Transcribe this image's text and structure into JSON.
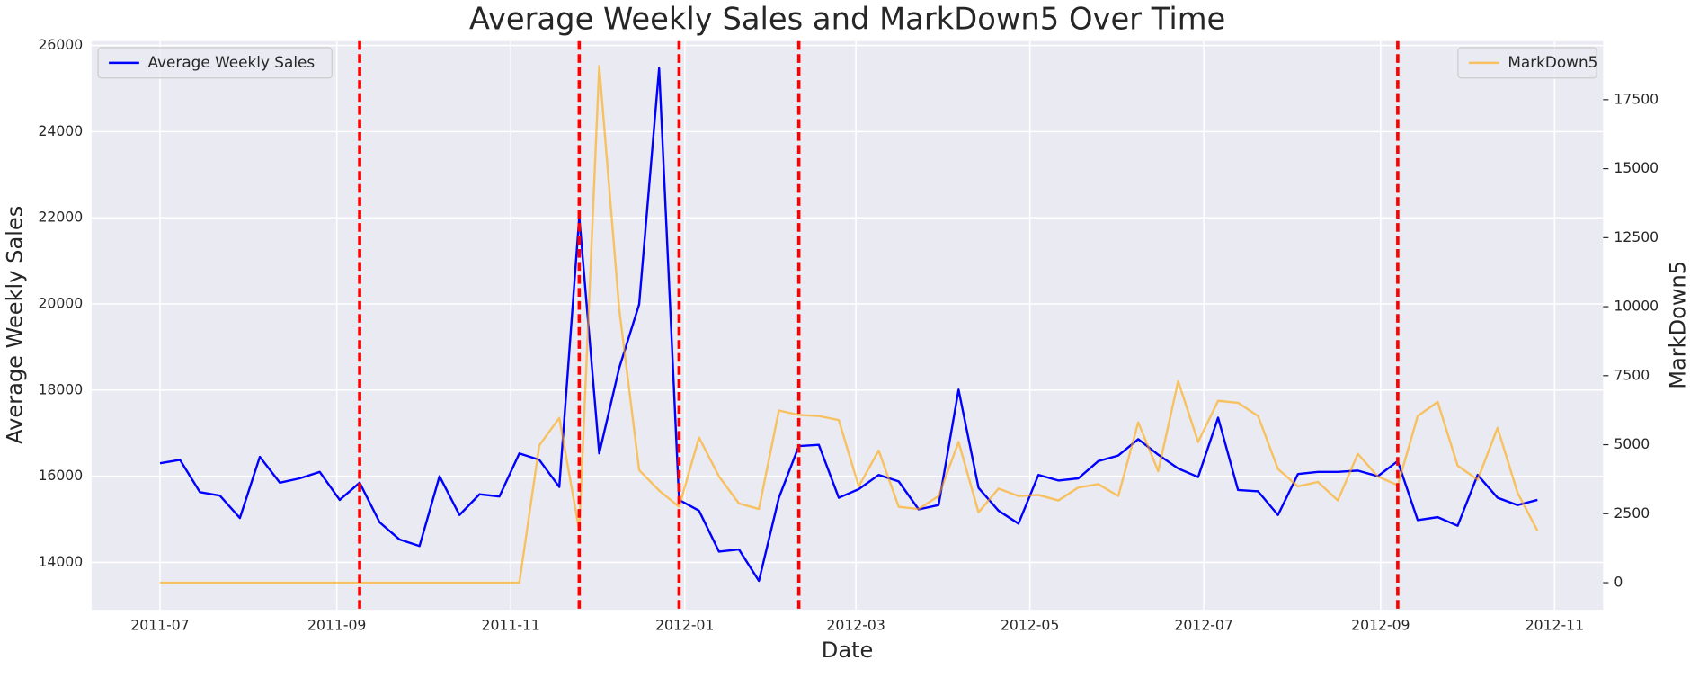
{
  "chart_data": {
    "type": "line",
    "title": "Average Weekly Sales and MarkDown5 Over Time",
    "xlabel": "Date",
    "ylabel": "Average Weekly Sales",
    "y2label": "MarkDown5",
    "grid": true,
    "x": [
      "2011-07-01",
      "2011-07-08",
      "2011-07-15",
      "2011-07-22",
      "2011-07-29",
      "2011-08-05",
      "2011-08-12",
      "2011-08-19",
      "2011-08-26",
      "2011-09-02",
      "2011-09-09",
      "2011-09-16",
      "2011-09-23",
      "2011-09-30",
      "2011-10-07",
      "2011-10-14",
      "2011-10-21",
      "2011-10-28",
      "2011-11-04",
      "2011-11-11",
      "2011-11-18",
      "2011-11-25",
      "2011-12-02",
      "2011-12-09",
      "2011-12-16",
      "2011-12-23",
      "2011-12-30",
      "2012-01-06",
      "2012-01-13",
      "2012-01-20",
      "2012-01-27",
      "2012-02-03",
      "2012-02-10",
      "2012-02-17",
      "2012-02-24",
      "2012-03-02",
      "2012-03-09",
      "2012-03-16",
      "2012-03-23",
      "2012-03-30",
      "2012-04-06",
      "2012-04-13",
      "2012-04-20",
      "2012-04-27",
      "2012-05-04",
      "2012-05-11",
      "2012-05-18",
      "2012-05-25",
      "2012-06-01",
      "2012-06-08",
      "2012-06-15",
      "2012-06-22",
      "2012-06-29",
      "2012-07-06",
      "2012-07-13",
      "2012-07-20",
      "2012-07-27",
      "2012-08-03",
      "2012-08-10",
      "2012-08-17",
      "2012-08-24",
      "2012-08-31",
      "2012-09-07",
      "2012-09-14",
      "2012-09-21",
      "2012-09-28",
      "2012-10-05",
      "2012-10-12",
      "2012-10-19",
      "2012-10-26"
    ],
    "xlim": [
      "2011-06-07",
      "2012-11-18"
    ],
    "xticks": [
      "2011-07",
      "2011-09",
      "2011-11",
      "2012-01",
      "2012-03",
      "2012-05",
      "2012-07",
      "2012-09",
      "2012-11"
    ],
    "ylim": [
      12900,
      26100
    ],
    "yticks": [
      14000,
      16000,
      18000,
      20000,
      22000,
      24000,
      26000
    ],
    "y2lim": [
      -980,
      19620
    ],
    "y2ticks": [
      0,
      2500,
      5000,
      7500,
      10000,
      12500,
      15000,
      17500
    ],
    "series": [
      {
        "name": "Average Weekly Sales",
        "color": "blue",
        "legend": "upper left",
        "values": [
          16300,
          16380,
          15630,
          15550,
          15030,
          16450,
          15850,
          15950,
          16100,
          15450,
          15850,
          14930,
          14530,
          14380,
          16000,
          15100,
          15580,
          15530,
          16530,
          16380,
          15750,
          22020,
          16530,
          18510,
          19990,
          25470,
          15450,
          15200,
          14250,
          14300,
          13570,
          15500,
          16700,
          16730,
          15500,
          15700,
          16030,
          15880,
          15230,
          15330,
          18010,
          15730,
          15200,
          14900,
          16030,
          15900,
          15950,
          16350,
          16480,
          16860,
          16500,
          16180,
          15980,
          17360,
          15680,
          15650,
          15100,
          16050,
          16100,
          16100,
          16130,
          16000,
          16350,
          14980,
          15050,
          14850,
          16030,
          15500,
          15330,
          15450
        ]
      },
      {
        "name": "MarkDown5",
        "color": "orange",
        "axis": "y2",
        "legend": "upper right",
        "values": [
          0,
          0,
          0,
          0,
          0,
          0,
          0,
          0,
          0,
          0,
          0,
          0,
          0,
          0,
          0,
          0,
          0,
          0,
          0,
          4980,
          5970,
          1880,
          18720,
          9930,
          4080,
          3340,
          2750,
          5260,
          3850,
          2870,
          2670,
          6240,
          6080,
          6040,
          5890,
          3490,
          4790,
          2750,
          2670,
          3140,
          5100,
          2550,
          3410,
          3140,
          3180,
          2980,
          3450,
          3570,
          3140,
          5810,
          4040,
          7300,
          5100,
          6590,
          6520,
          6040,
          4120,
          3490,
          3650,
          2980,
          4670,
          3850,
          3530,
          6040,
          6550,
          4240,
          3730,
          5610,
          3260,
          1880
        ]
      }
    ],
    "vlines": {
      "color": "red",
      "x": [
        "2011-09-09",
        "2011-11-25",
        "2011-12-30",
        "2012-02-10",
        "2012-09-07"
      ]
    }
  }
}
